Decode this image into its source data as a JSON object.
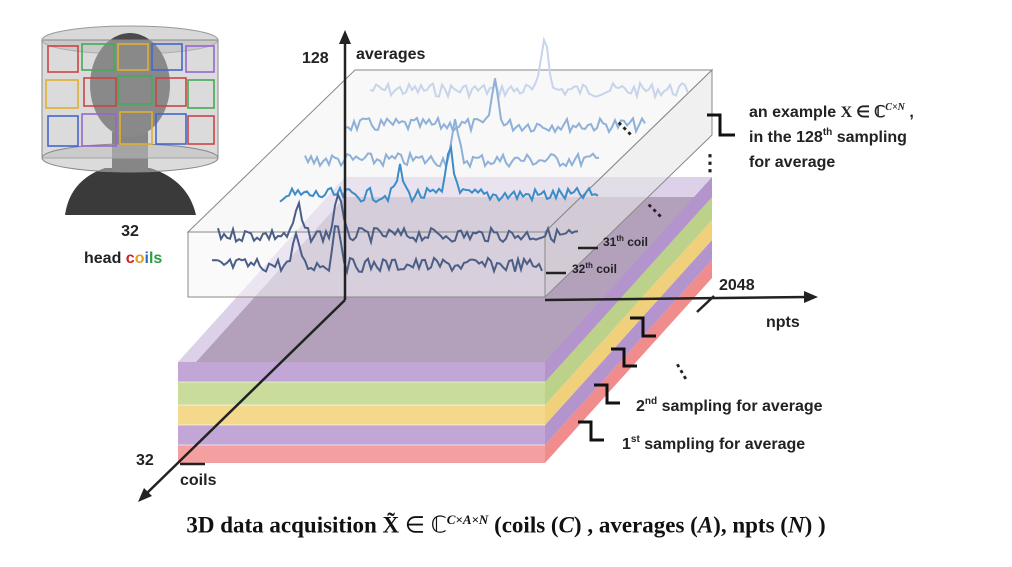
{
  "head": {
    "count": "32",
    "label_prefix": "head ",
    "coils_word": [
      "c",
      "o",
      "i",
      "l",
      "s"
    ],
    "coils_colors": [
      "#cc2222",
      "#e0a020",
      "#3c64c8",
      "#2e9e3e",
      "#2e9e3e"
    ]
  },
  "axes": {
    "y_max": "128",
    "y_label": "averages",
    "x_max": "2048",
    "x_label": "npts",
    "z_max": "32",
    "z_label": "coils"
  },
  "spectra": {
    "coil_31_label": "31",
    "coil_31_sup": "th",
    "coil_31_suffix": " coil",
    "coil_32_label": "32",
    "coil_32_sup": "th",
    "coil_32_suffix": " coil"
  },
  "example": {
    "line1_prefix": "an example ",
    "line1_math": "X ∈ ℂ",
    "line1_sup": "C×N",
    "line1_suffix": " ,",
    "line2_prefix": "in the  128",
    "line2_sup": "th",
    "line2_suffix": " sampling",
    "line3": "for average"
  },
  "samplings": {
    "second_num": "2",
    "second_sup": "nd",
    "second_text": " sampling for average",
    "first_num": "1",
    "first_sup": "st",
    "first_text": " sampling for average"
  },
  "ellipsis": "⋮",
  "caption": {
    "lead": "3D data acquisition ",
    "symbol": "X̃",
    "in": " ∈ ℂ",
    "sup": "C×A×N",
    "rest1": " (coils (",
    "c": "C",
    "rest2": ") , averages (",
    "a": "A",
    "rest3": "), npts (",
    "n": "N",
    "rest4": ") )"
  },
  "colors": {
    "layer_red": "#f4a0a0",
    "layer_purple": "#c2a6d6",
    "layer_yellow": "#f4d98c",
    "layer_green": "#c9dc9c",
    "layer_blue": "#b6c8e6",
    "spectrum_dark": "#4a5e86",
    "spectrum_mid": "#3c8cc8",
    "spectrum_light": "#8fb0d8",
    "spectrum_faint": "#c6d4ec"
  }
}
